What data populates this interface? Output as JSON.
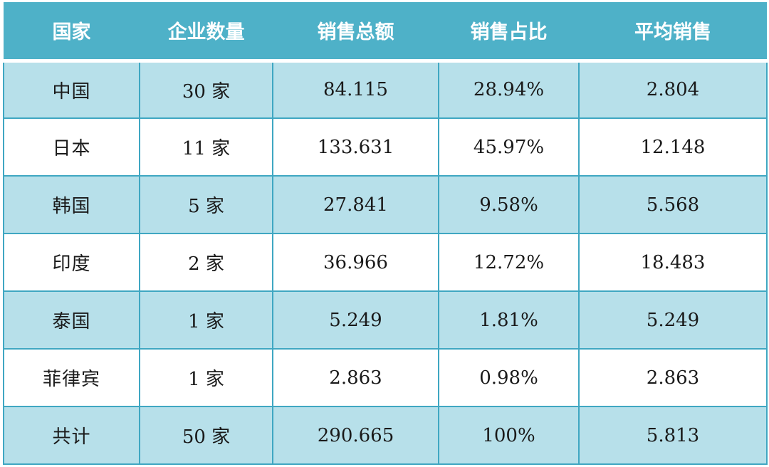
{
  "table": {
    "headers": [
      "国家",
      "企业数量",
      "销售总额",
      "销售占比",
      "平均销售"
    ],
    "rows": [
      [
        "中国",
        "30 家",
        "84.115",
        "28.94%",
        "2.804"
      ],
      [
        "日本",
        "11 家",
        "133.631",
        "45.97%",
        "12.148"
      ],
      [
        "韩国",
        "5 家",
        "27.841",
        "9.58%",
        "5.568"
      ],
      [
        "印度",
        "2 家",
        "36.966",
        "12.72%",
        "18.483"
      ],
      [
        "泰国",
        "1 家",
        "5.249",
        "1.81%",
        "5.249"
      ],
      [
        "菲律宾",
        "1 家",
        "2.863",
        "0.98%",
        "2.863"
      ],
      [
        "共计",
        "50 家",
        "290.665",
        "100%",
        "5.813"
      ]
    ]
  },
  "colors": {
    "header_bg": "#4eb1c8",
    "header_text": "#ffffff",
    "row_alt_bg": "#b7e0ea",
    "row_bg": "#ffffff",
    "border": "#3fa7c2"
  }
}
